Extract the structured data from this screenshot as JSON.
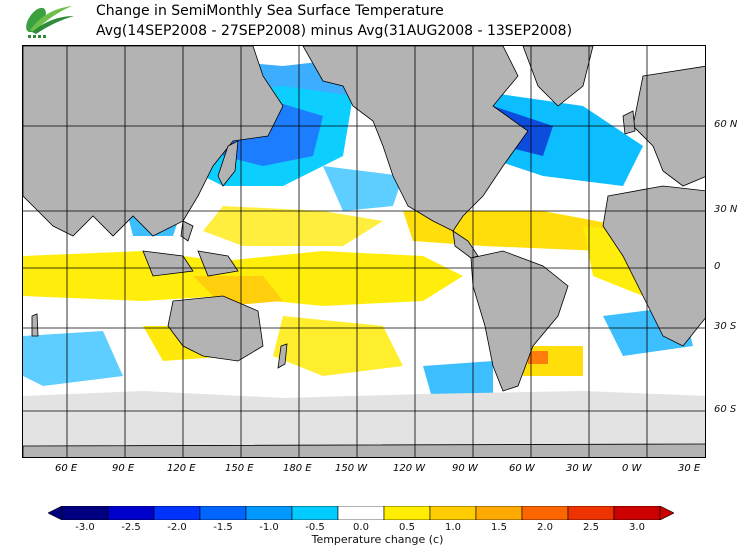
{
  "title": {
    "line1": "Change in SemiMonthly Sea Surface Temperature",
    "line2": "Avg(14SEP2008 - 27SEP2008) minus Avg(31AUG2008 - 13SEP2008)"
  },
  "map": {
    "projection": "cylindrical",
    "longitude_labels": [
      "60 E",
      "90 E",
      "120 E",
      "150 E",
      "180 E",
      "150 W",
      "120 W",
      "90 W",
      "60 W",
      "30 W",
      "0 W",
      "30 E"
    ],
    "latitude_labels": [
      "60 N",
      "30 N",
      "0",
      "30 S",
      "60 S"
    ],
    "land_color": "#b3b3b3",
    "ice_color": "#e3e3e3",
    "grid": true
  },
  "colorbar": {
    "ticks": [
      "-3.0",
      "-2.5",
      "-2.0",
      "-1.5",
      "-1.0",
      "-0.5",
      "0.0",
      "0.5",
      "1.0",
      "1.5",
      "2.0",
      "2.5",
      "3.0"
    ],
    "colors": [
      "#000080",
      "#0000cc",
      "#0033ff",
      "#0066ff",
      "#0099ff",
      "#00ccff",
      "#ffffff",
      "#ffee00",
      "#ffcc00",
      "#ffaa00",
      "#ff6600",
      "#ee3300",
      "#cc0000"
    ],
    "label": "Temperature change  (c)"
  }
}
